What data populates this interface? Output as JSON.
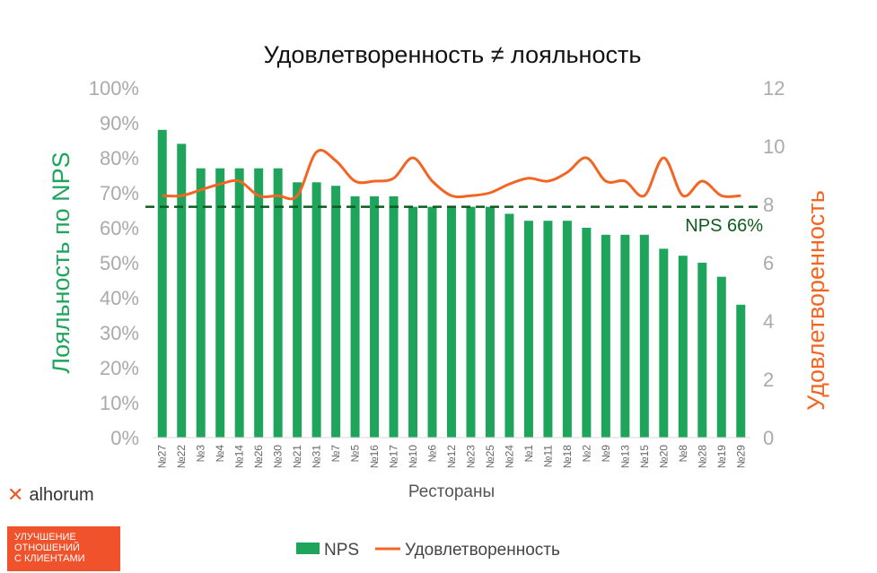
{
  "chart_data": {
    "type": "bar",
    "title": "Удовлетворенность ≠ лояльность",
    "xlabel": "Рестораны",
    "ylabel_left": "Лояльность по NPS",
    "ylabel_right": "Удовлетворенность",
    "categories": [
      "№27",
      "№22",
      "№3",
      "№4",
      "№14",
      "№26",
      "№30",
      "№21",
      "№31",
      "№7",
      "№5",
      "№16",
      "№17",
      "№10",
      "№6",
      "№12",
      "№23",
      "№25",
      "№24",
      "№1",
      "№11",
      "№18",
      "№2",
      "№9",
      "№13",
      "№15",
      "№20",
      "№8",
      "№28",
      "№19",
      "№29"
    ],
    "series": [
      {
        "name": "NPS",
        "type": "bar",
        "axis": "left",
        "color": "#1fa55b",
        "values": [
          88,
          84,
          77,
          77,
          77,
          77,
          77,
          73,
          73,
          72,
          69,
          69,
          69,
          66,
          66,
          66,
          66,
          66,
          64,
          62,
          62,
          62,
          60,
          58,
          58,
          58,
          54,
          52,
          50,
          46,
          38
        ]
      },
      {
        "name": "Удовлетворенность",
        "type": "line",
        "axis": "right",
        "color": "#f26522",
        "values": [
          8.3,
          8.3,
          8.5,
          8.7,
          8.8,
          8.3,
          8.3,
          8.3,
          9.8,
          9.5,
          8.8,
          8.8,
          8.9,
          9.6,
          8.8,
          8.3,
          8.3,
          8.4,
          8.7,
          8.9,
          8.8,
          9.1,
          9.6,
          8.8,
          8.8,
          8.3,
          9.6,
          8.3,
          8.8,
          8.3,
          8.3
        ]
      }
    ],
    "ylim_left": [
      0,
      100
    ],
    "ylim_right": [
      0,
      12
    ],
    "yticks_left": [
      "0%",
      "10%",
      "20%",
      "30%",
      "40%",
      "50%",
      "60%",
      "70%",
      "80%",
      "90%",
      "100%"
    ],
    "yticks_right": [
      "0",
      "2",
      "4",
      "6",
      "8",
      "10",
      "12"
    ],
    "reference_line": {
      "value": 66,
      "label": "NPS 66%",
      "color": "#0f5a1f",
      "style": "dashed"
    },
    "legend": {
      "position": "bottom",
      "items": [
        "NPS",
        "Удовлетворенность"
      ]
    },
    "grid": false
  },
  "brand": {
    "mark": "✕",
    "name": "alhorum",
    "tagline": [
      "УЛУЧШЕНИЕ",
      "ОТНОШЕНИЙ",
      "С КЛИЕНТАМИ"
    ]
  }
}
